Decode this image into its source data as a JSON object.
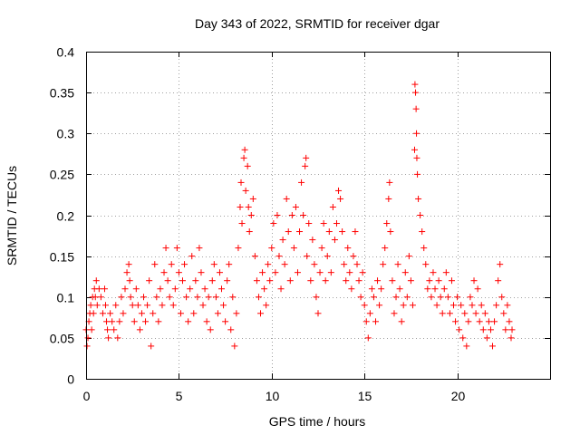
{
  "chart_data": {
    "type": "scatter",
    "title": "Day 343 of 2022, SRMTID for receiver dgar",
    "xlabel": "GPS time / hours",
    "ylabel": "SRMTID / TECUs",
    "xlim": [
      0,
      25
    ],
    "ylim": [
      0,
      0.4
    ],
    "xticks": [
      0,
      5,
      10,
      15,
      20
    ],
    "xtick_labels": [
      "0",
      "5",
      "10",
      "15",
      "20"
    ],
    "yticks": [
      0,
      0.05,
      0.1,
      0.15,
      0.2,
      0.25,
      0.3,
      0.35,
      0.4
    ],
    "ytick_labels": [
      "0",
      "0.05",
      "0.1",
      "0.15",
      "0.2",
      "0.25",
      "0.3",
      "0.35",
      "0.4"
    ],
    "grid": true,
    "marker": "+",
    "marker_color": "#ff0000",
    "series": [
      {
        "name": "SRMTID",
        "points": [
          [
            0.0,
            0.06
          ],
          [
            0.05,
            0.04
          ],
          [
            0.1,
            0.05
          ],
          [
            0.15,
            0.07
          ],
          [
            0.2,
            0.08
          ],
          [
            0.25,
            0.09
          ],
          [
            0.3,
            0.06
          ],
          [
            0.35,
            0.1
          ],
          [
            0.4,
            0.08
          ],
          [
            0.45,
            0.11
          ],
          [
            0.5,
            0.1
          ],
          [
            0.55,
            0.12
          ],
          [
            0.6,
            0.09
          ],
          [
            0.7,
            0.11
          ],
          [
            0.8,
            0.1
          ],
          [
            0.9,
            0.08
          ],
          [
            1.0,
            0.11
          ],
          [
            1.05,
            0.09
          ],
          [
            1.1,
            0.07
          ],
          [
            1.15,
            0.06
          ],
          [
            1.2,
            0.05
          ],
          [
            1.3,
            0.08
          ],
          [
            1.4,
            0.07
          ],
          [
            1.5,
            0.06
          ],
          [
            1.6,
            0.09
          ],
          [
            1.7,
            0.05
          ],
          [
            1.8,
            0.07
          ],
          [
            1.9,
            0.1
          ],
          [
            2.0,
            0.08
          ],
          [
            2.1,
            0.11
          ],
          [
            2.2,
            0.13
          ],
          [
            2.3,
            0.14
          ],
          [
            2.35,
            0.12
          ],
          [
            2.4,
            0.1
          ],
          [
            2.5,
            0.09
          ],
          [
            2.6,
            0.07
          ],
          [
            2.7,
            0.11
          ],
          [
            2.8,
            0.09
          ],
          [
            2.9,
            0.06
          ],
          [
            3.0,
            0.08
          ],
          [
            3.1,
            0.1
          ],
          [
            3.2,
            0.07
          ],
          [
            3.3,
            0.09
          ],
          [
            3.4,
            0.12
          ],
          [
            3.5,
            0.04
          ],
          [
            3.6,
            0.08
          ],
          [
            3.7,
            0.14
          ],
          [
            3.8,
            0.1
          ],
          [
            3.9,
            0.07
          ],
          [
            4.0,
            0.11
          ],
          [
            4.1,
            0.09
          ],
          [
            4.2,
            0.13
          ],
          [
            4.3,
            0.16
          ],
          [
            4.4,
            0.12
          ],
          [
            4.5,
            0.1
          ],
          [
            4.6,
            0.14
          ],
          [
            4.7,
            0.09
          ],
          [
            4.8,
            0.11
          ],
          [
            4.9,
            0.16
          ],
          [
            5.0,
            0.13
          ],
          [
            5.1,
            0.08
          ],
          [
            5.2,
            0.12
          ],
          [
            5.3,
            0.14
          ],
          [
            5.4,
            0.1
          ],
          [
            5.5,
            0.07
          ],
          [
            5.6,
            0.11
          ],
          [
            5.7,
            0.15
          ],
          [
            5.8,
            0.08
          ],
          [
            5.9,
            0.12
          ],
          [
            6.0,
            0.1
          ],
          [
            6.1,
            0.16
          ],
          [
            6.2,
            0.13
          ],
          [
            6.3,
            0.09
          ],
          [
            6.4,
            0.11
          ],
          [
            6.5,
            0.07
          ],
          [
            6.6,
            0.1
          ],
          [
            6.7,
            0.06
          ],
          [
            6.8,
            0.12
          ],
          [
            6.9,
            0.14
          ],
          [
            7.0,
            0.1
          ],
          [
            7.1,
            0.08
          ],
          [
            7.2,
            0.13
          ],
          [
            7.3,
            0.11
          ],
          [
            7.4,
            0.09
          ],
          [
            7.5,
            0.07
          ],
          [
            7.6,
            0.12
          ],
          [
            7.7,
            0.14
          ],
          [
            7.8,
            0.06
          ],
          [
            7.9,
            0.1
          ],
          [
            8.0,
            0.04
          ],
          [
            8.1,
            0.08
          ],
          [
            8.2,
            0.16
          ],
          [
            8.3,
            0.21
          ],
          [
            8.35,
            0.24
          ],
          [
            8.4,
            0.19
          ],
          [
            8.5,
            0.27
          ],
          [
            8.55,
            0.28
          ],
          [
            8.6,
            0.23
          ],
          [
            8.7,
            0.26
          ],
          [
            8.75,
            0.21
          ],
          [
            8.8,
            0.18
          ],
          [
            8.9,
            0.2
          ],
          [
            9.0,
            0.22
          ],
          [
            9.1,
            0.15
          ],
          [
            9.2,
            0.12
          ],
          [
            9.3,
            0.1
          ],
          [
            9.4,
            0.08
          ],
          [
            9.5,
            0.13
          ],
          [
            9.6,
            0.11
          ],
          [
            9.7,
            0.09
          ],
          [
            9.8,
            0.14
          ],
          [
            9.9,
            0.12
          ],
          [
            10.0,
            0.16
          ],
          [
            10.1,
            0.19
          ],
          [
            10.2,
            0.13
          ],
          [
            10.3,
            0.2
          ],
          [
            10.4,
            0.15
          ],
          [
            10.5,
            0.11
          ],
          [
            10.6,
            0.17
          ],
          [
            10.7,
            0.14
          ],
          [
            10.8,
            0.22
          ],
          [
            10.9,
            0.18
          ],
          [
            11.0,
            0.12
          ],
          [
            11.1,
            0.2
          ],
          [
            11.2,
            0.16
          ],
          [
            11.3,
            0.21
          ],
          [
            11.4,
            0.13
          ],
          [
            11.5,
            0.18
          ],
          [
            11.6,
            0.24
          ],
          [
            11.7,
            0.2
          ],
          [
            11.8,
            0.26
          ],
          [
            11.85,
            0.27
          ],
          [
            11.9,
            0.15
          ],
          [
            12.0,
            0.19
          ],
          [
            12.1,
            0.12
          ],
          [
            12.2,
            0.17
          ],
          [
            12.3,
            0.14
          ],
          [
            12.4,
            0.1
          ],
          [
            12.5,
            0.08
          ],
          [
            12.6,
            0.13
          ],
          [
            12.7,
            0.16
          ],
          [
            12.8,
            0.19
          ],
          [
            12.9,
            0.12
          ],
          [
            13.0,
            0.15
          ],
          [
            13.1,
            0.18
          ],
          [
            13.2,
            0.13
          ],
          [
            13.3,
            0.21
          ],
          [
            13.4,
            0.17
          ],
          [
            13.5,
            0.19
          ],
          [
            13.6,
            0.23
          ],
          [
            13.7,
            0.22
          ],
          [
            13.8,
            0.18
          ],
          [
            13.9,
            0.14
          ],
          [
            14.0,
            0.12
          ],
          [
            14.1,
            0.16
          ],
          [
            14.2,
            0.13
          ],
          [
            14.3,
            0.11
          ],
          [
            14.4,
            0.15
          ],
          [
            14.5,
            0.18
          ],
          [
            14.6,
            0.14
          ],
          [
            14.7,
            0.12
          ],
          [
            14.8,
            0.1
          ],
          [
            14.9,
            0.13
          ],
          [
            15.0,
            0.09
          ],
          [
            15.1,
            0.07
          ],
          [
            15.2,
            0.05
          ],
          [
            15.3,
            0.08
          ],
          [
            15.4,
            0.11
          ],
          [
            15.5,
            0.1
          ],
          [
            15.6,
            0.07
          ],
          [
            15.7,
            0.12
          ],
          [
            15.8,
            0.09
          ],
          [
            15.9,
            0.11
          ],
          [
            16.0,
            0.14
          ],
          [
            16.1,
            0.16
          ],
          [
            16.2,
            0.19
          ],
          [
            16.3,
            0.22
          ],
          [
            16.35,
            0.24
          ],
          [
            16.4,
            0.18
          ],
          [
            16.5,
            0.12
          ],
          [
            16.6,
            0.08
          ],
          [
            16.7,
            0.1
          ],
          [
            16.8,
            0.14
          ],
          [
            16.9,
            0.11
          ],
          [
            17.0,
            0.07
          ],
          [
            17.1,
            0.09
          ],
          [
            17.2,
            0.13
          ],
          [
            17.3,
            0.1
          ],
          [
            17.4,
            0.15
          ],
          [
            17.5,
            0.12
          ],
          [
            17.6,
            0.09
          ],
          [
            17.7,
            0.28
          ],
          [
            17.72,
            0.36
          ],
          [
            17.75,
            0.35
          ],
          [
            17.78,
            0.33
          ],
          [
            17.8,
            0.3
          ],
          [
            17.82,
            0.27
          ],
          [
            17.85,
            0.25
          ],
          [
            17.9,
            0.22
          ],
          [
            18.0,
            0.2
          ],
          [
            18.1,
            0.18
          ],
          [
            18.2,
            0.16
          ],
          [
            18.3,
            0.14
          ],
          [
            18.4,
            0.11
          ],
          [
            18.5,
            0.12
          ],
          [
            18.6,
            0.1
          ],
          [
            18.7,
            0.13
          ],
          [
            18.8,
            0.11
          ],
          [
            18.9,
            0.09
          ],
          [
            19.0,
            0.12
          ],
          [
            19.1,
            0.1
          ],
          [
            19.2,
            0.08
          ],
          [
            19.3,
            0.11
          ],
          [
            19.4,
            0.13
          ],
          [
            19.5,
            0.1
          ],
          [
            19.6,
            0.08
          ],
          [
            19.7,
            0.12
          ],
          [
            19.8,
            0.09
          ],
          [
            19.9,
            0.07
          ],
          [
            20.0,
            0.1
          ],
          [
            20.1,
            0.06
          ],
          [
            20.2,
            0.09
          ],
          [
            20.3,
            0.05
          ],
          [
            20.4,
            0.08
          ],
          [
            20.5,
            0.04
          ],
          [
            20.6,
            0.07
          ],
          [
            20.7,
            0.1
          ],
          [
            20.8,
            0.09
          ],
          [
            20.9,
            0.12
          ],
          [
            21.0,
            0.08
          ],
          [
            21.1,
            0.11
          ],
          [
            21.2,
            0.07
          ],
          [
            21.3,
            0.09
          ],
          [
            21.4,
            0.06
          ],
          [
            21.5,
            0.08
          ],
          [
            21.6,
            0.05
          ],
          [
            21.7,
            0.07
          ],
          [
            21.8,
            0.06
          ],
          [
            21.9,
            0.04
          ],
          [
            22.0,
            0.07
          ],
          [
            22.1,
            0.09
          ],
          [
            22.2,
            0.12
          ],
          [
            22.3,
            0.14
          ],
          [
            22.4,
            0.1
          ],
          [
            22.5,
            0.08
          ],
          [
            22.6,
            0.06
          ],
          [
            22.7,
            0.09
          ],
          [
            22.8,
            0.07
          ],
          [
            22.9,
            0.05
          ],
          [
            22.95,
            0.06
          ]
        ]
      }
    ]
  }
}
